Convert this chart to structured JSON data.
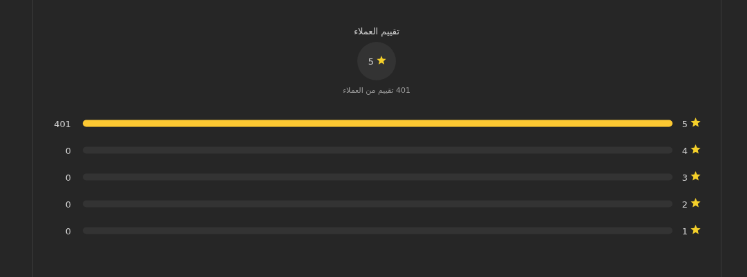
{
  "chart_data": {
    "type": "bar",
    "orientation": "horizontal",
    "title": "تقييم العملاء",
    "annotations": [
      "5",
      "401 تقييم من العملاء"
    ],
    "categories": [
      "5",
      "4",
      "3",
      "2",
      "1"
    ],
    "values": [
      401,
      0,
      0,
      0,
      0
    ],
    "color": "#fcc832",
    "data_labels": true
  }
}
